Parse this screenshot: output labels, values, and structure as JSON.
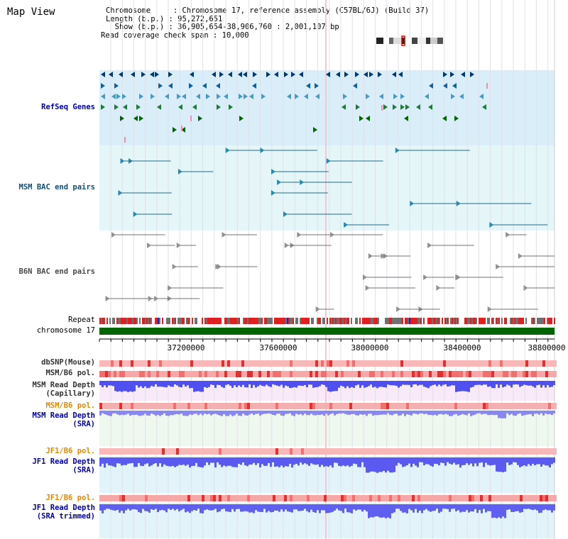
{
  "title": "Map View",
  "info": {
    "line1": "Chromosome     : Chromosome 17, reference assembly (C57BL/6J) (Build 37)",
    "line2": "Length (b.p.) : 95,272,651",
    "line3": "  Show (b.p.) : 36,905,654-38,906,760 : 2,001,107 bp",
    "line4": "Read coverage check span : 10,000"
  },
  "tracks": {
    "refseq": "RefSeq Genes",
    "msm_bac": "MSM BAC end pairs",
    "b6n_bac": "B6N BAC end pairs",
    "repeat": "Repeat",
    "chromosome": "chromosome 17",
    "dbsnp": "dbSNP(Mouse)",
    "msm_pol1": "MSM/B6 pol.",
    "msm_depth_cap_1": "MSM Read Depth",
    "msm_depth_cap_2": "(Capillary)",
    "msm_pol2": "MSM/B6 pol.",
    "msm_depth_sra_1": "MSM Read Depth",
    "msm_depth_sra_2": "(SRA)",
    "jf1_pol1": "JF1/B6 pol.",
    "jf1_depth_sra_1": "JF1 Read Depth",
    "jf1_depth_sra_2": "(SRA)",
    "jf1_pol2": "JF1/B6 pol.",
    "jf1_depth_trim_1": "JF1 Read Depth",
    "jf1_depth_trim_2": "(SRA trimmed)"
  },
  "ruler_ticks": [
    "37200000",
    "37600000",
    "38000000",
    "38400000",
    "38800000"
  ],
  "colors": {
    "refseq_label": "#0000aa",
    "msm_label": "#0f4f7a",
    "b6n_label": "#4a4a4a",
    "pol_label": "#e08a00",
    "depth_label": "#0000aa",
    "refseq_bg": "#daeefa",
    "depth_blue": "#3030e0",
    "chromosome_green": "#006400"
  }
}
